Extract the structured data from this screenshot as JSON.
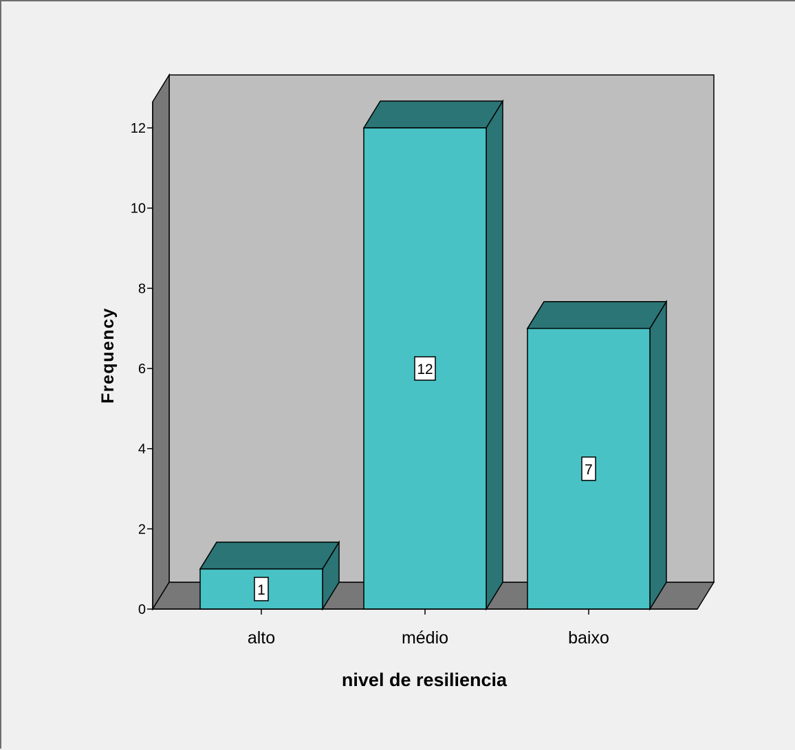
{
  "chart_data": {
    "type": "bar",
    "categories": [
      "alto",
      "médio",
      "baixo"
    ],
    "values": [
      1,
      12,
      7
    ],
    "data_labels": [
      "1",
      "12",
      "7"
    ],
    "xlabel": "nivel de resiliencia",
    "ylabel": "Frequency",
    "ylim": [
      0,
      12
    ],
    "yticks": [
      0,
      2,
      4,
      6,
      8,
      10,
      12
    ],
    "style": "3d",
    "grid": false,
    "legend": "none",
    "colors": {
      "bar_front": "#48c2c5",
      "bar_top": "#2b7576",
      "bar_side": "#2b7576",
      "wall_back": "#bebebe",
      "wall_side": "#787878",
      "floor": "#787878",
      "background": "#f0f0f0",
      "outline": "#000000"
    }
  }
}
